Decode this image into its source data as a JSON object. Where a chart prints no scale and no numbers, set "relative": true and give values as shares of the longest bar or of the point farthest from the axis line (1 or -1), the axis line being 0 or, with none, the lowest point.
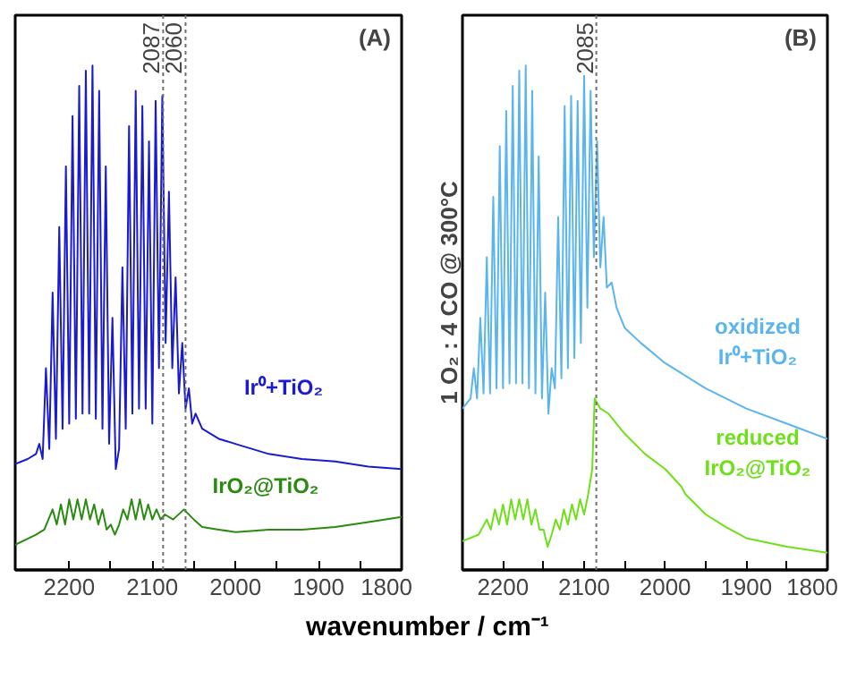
{
  "chart_data": [
    {
      "type": "line",
      "relative": true,
      "xlim": [
        2265,
        1800
      ],
      "xlabel": "wavenumber / cm⁻¹",
      "xticks": [
        2200,
        {
          "value": 2150,
          "label": null
        },
        2100,
        {
          "value": 2050,
          "label": null
        },
        2000,
        {
          "value": 1950,
          "label": null
        },
        1900,
        {
          "value": 1850,
          "label": null
        },
        1800
      ],
      "annotations": [
        "(A)"
      ],
      "ref_lines": [
        {
          "axis": "x",
          "value": 2087,
          "label": "2087",
          "color": "#707070",
          "line_style": "dotted"
        },
        {
          "axis": "x",
          "value": 2060,
          "label": "2060",
          "color": "#707070",
          "line_style": "dotted"
        }
      ],
      "series": [
        {
          "name": "Ir⁰+TiO₂",
          "color": "#1a1ad0",
          "x": [
            2265,
            2250,
            2240,
            2236,
            2232,
            2228,
            2224,
            2220,
            2216,
            2212,
            2208,
            2204,
            2200,
            2196,
            2192,
            2188,
            2184,
            2180,
            2176,
            2172,
            2168,
            2164,
            2160,
            2156,
            2152,
            2148,
            2144,
            2140,
            2136,
            2132,
            2128,
            2124,
            2120,
            2116,
            2112,
            2108,
            2104,
            2100,
            2096,
            2092,
            2088,
            2084,
            2080,
            2076,
            2072,
            2068,
            2064,
            2060,
            2056,
            2052,
            2048,
            2040,
            2020,
            2000,
            1960,
            1920,
            1880,
            1840,
            1800
          ],
          "values": [
            0.21,
            0.22,
            0.23,
            0.25,
            0.22,
            0.4,
            0.24,
            0.55,
            0.26,
            0.68,
            0.28,
            0.8,
            0.29,
            0.9,
            0.3,
            0.96,
            0.31,
            0.99,
            0.31,
            1.0,
            0.3,
            0.95,
            0.28,
            0.8,
            0.25,
            0.5,
            0.2,
            0.24,
            0.6,
            0.28,
            0.88,
            0.31,
            0.95,
            0.32,
            0.92,
            0.32,
            0.85,
            0.29,
            0.93,
            0.4,
            0.94,
            0.45,
            0.75,
            0.4,
            0.58,
            0.35,
            0.45,
            0.32,
            0.36,
            0.29,
            0.31,
            0.28,
            0.26,
            0.25,
            0.23,
            0.22,
            0.215,
            0.205,
            0.2
          ]
        },
        {
          "name": "IrO₂@TiO₂",
          "color": "#2a8a10",
          "x": [
            2265,
            2240,
            2230,
            2220,
            2215,
            2210,
            2205,
            2200,
            2195,
            2190,
            2185,
            2180,
            2175,
            2170,
            2165,
            2160,
            2155,
            2150,
            2145,
            2140,
            2135,
            2130,
            2125,
            2120,
            2115,
            2110,
            2105,
            2100,
            2095,
            2090,
            2085,
            2075,
            2062,
            2050,
            2040,
            2020,
            2000,
            1960,
            1920,
            1880,
            1840,
            1800
          ],
          "values": [
            0.05,
            0.07,
            0.08,
            0.12,
            0.09,
            0.13,
            0.09,
            0.14,
            0.1,
            0.14,
            0.1,
            0.14,
            0.1,
            0.13,
            0.09,
            0.12,
            0.08,
            0.09,
            0.07,
            0.09,
            0.12,
            0.1,
            0.14,
            0.1,
            0.14,
            0.1,
            0.13,
            0.1,
            0.12,
            0.1,
            0.11,
            0.1,
            0.12,
            0.1,
            0.085,
            0.08,
            0.075,
            0.08,
            0.08,
            0.085,
            0.095,
            0.105
          ]
        }
      ]
    },
    {
      "type": "line",
      "relative": true,
      "xlim": [
        2250,
        1800
      ],
      "ylabel": "1 O₂ : 4 CO @ 300°C",
      "xticks": [
        2200,
        {
          "value": 2150,
          "label": null
        },
        2100,
        {
          "value": 2050,
          "label": null
        },
        2000,
        {
          "value": 1950,
          "label": null
        },
        1900,
        {
          "value": 1850,
          "label": null
        },
        1800
      ],
      "annotations": [
        "(B)"
      ],
      "ref_lines": [
        {
          "axis": "x",
          "value": 2085,
          "label": "2085",
          "color": "#707070",
          "line_style": "dotted"
        }
      ],
      "series": [
        {
          "name": "oxidized\nIr⁰+TiO₂",
          "color": "#5ab4ee",
          "x": [
            2250,
            2240,
            2236,
            2232,
            2228,
            2224,
            2220,
            2216,
            2212,
            2208,
            2204,
            2200,
            2196,
            2192,
            2188,
            2184,
            2180,
            2176,
            2172,
            2168,
            2164,
            2160,
            2156,
            2152,
            2148,
            2144,
            2140,
            2136,
            2132,
            2128,
            2124,
            2120,
            2116,
            2112,
            2108,
            2104,
            2100,
            2096,
            2092,
            2088,
            2084,
            2080,
            2076,
            2072,
            2066,
            2060,
            2050,
            2030,
            2000,
            1950,
            1900,
            1850,
            1800
          ],
          "values": [
            0.32,
            0.34,
            0.4,
            0.34,
            0.5,
            0.35,
            0.62,
            0.35,
            0.74,
            0.36,
            0.84,
            0.36,
            0.91,
            0.37,
            0.96,
            0.37,
            0.99,
            0.37,
            1.0,
            0.36,
            0.95,
            0.35,
            0.82,
            0.34,
            0.55,
            0.31,
            0.4,
            0.36,
            0.7,
            0.38,
            0.92,
            0.4,
            0.94,
            0.42,
            0.93,
            0.45,
            0.98,
            0.52,
            0.95,
            0.62,
            0.85,
            0.6,
            0.7,
            0.56,
            0.57,
            0.52,
            0.48,
            0.45,
            0.41,
            0.36,
            0.32,
            0.29,
            0.26
          ]
        },
        {
          "name": "reduced\nIrO₂@TiO₂",
          "color": "#6ee01a",
          "x": [
            2250,
            2230,
            2220,
            2215,
            2210,
            2205,
            2200,
            2195,
            2190,
            2185,
            2180,
            2175,
            2170,
            2165,
            2160,
            2155,
            2150,
            2145,
            2140,
            2135,
            2130,
            2125,
            2120,
            2115,
            2110,
            2105,
            2100,
            2095,
            2090,
            2087,
            2080,
            2070,
            2050,
            2025,
            2000,
            1980,
            1975,
            1950,
            1925,
            1900,
            1850,
            1800
          ],
          "values": [
            0.057,
            0.07,
            0.1,
            0.08,
            0.12,
            0.09,
            0.13,
            0.09,
            0.14,
            0.1,
            0.14,
            0.1,
            0.14,
            0.09,
            0.12,
            0.08,
            0.08,
            0.046,
            0.07,
            0.1,
            0.08,
            0.12,
            0.09,
            0.13,
            0.1,
            0.14,
            0.11,
            0.15,
            0.2,
            0.34,
            0.32,
            0.31,
            0.27,
            0.23,
            0.2,
            0.165,
            0.15,
            0.11,
            0.085,
            0.063,
            0.046,
            0.034
          ]
        }
      ]
    }
  ]
}
